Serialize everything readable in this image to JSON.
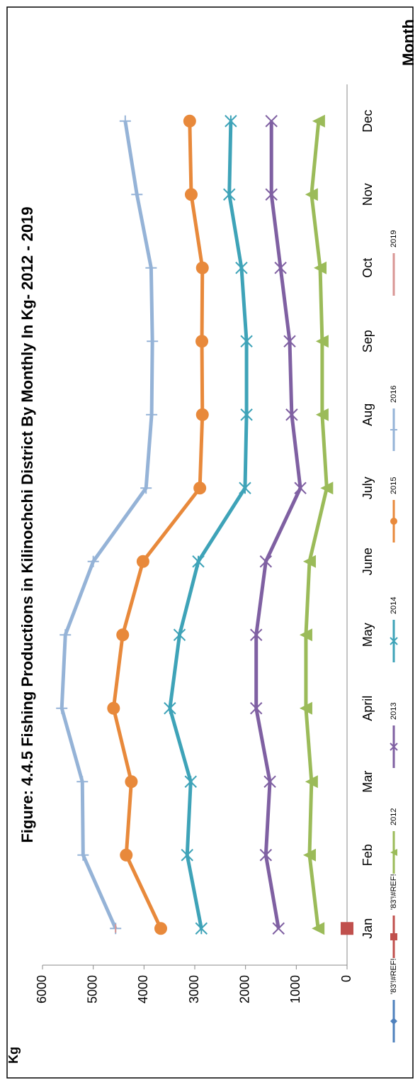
{
  "chart_data": {
    "type": "line",
    "title": "Figure: 4.4.5 Fishing Productions in Kilinochchi District By Monthly In Kg- 2012  - 2019",
    "y_label": "Kg",
    "x_label": "Month",
    "categories": [
      "Jan",
      "Feb",
      "Mar",
      "April",
      "May",
      "June",
      "July",
      "Aug",
      "Sep",
      "Oct",
      "Nov",
      "Dec"
    ],
    "ylim": [
      0,
      6000
    ],
    "yticks": [
      0,
      1000,
      2000,
      3000,
      4000,
      5000,
      6000
    ],
    "grid": false,
    "legend": "bottom",
    "series": [
      {
        "name": "'83'!#REF!",
        "color": "#4f81bd",
        "marker": "diamond",
        "values": [
          null,
          null,
          null,
          null,
          null,
          null,
          null,
          null,
          null,
          null,
          null,
          null
        ]
      },
      {
        "name": "'83'!#REF!",
        "color": "#c0504d",
        "marker": "square",
        "values": [
          0,
          null,
          null,
          null,
          null,
          null,
          null,
          null,
          null,
          null,
          null,
          null
        ]
      },
      {
        "name": "2012",
        "color": "#9bbb59",
        "marker": "triangle",
        "values": [
          570,
          740,
          700,
          810,
          810,
          740,
          400,
          490,
          490,
          530,
          700,
          560
        ]
      },
      {
        "name": "2013",
        "color": "#7f60a2",
        "marker": "x",
        "values": [
          1350,
          1600,
          1520,
          1790,
          1790,
          1600,
          920,
          1090,
          1130,
          1310,
          1490,
          1490
        ]
      },
      {
        "name": "2014",
        "color": "#3ea3b8",
        "marker": "star",
        "values": [
          2870,
          3150,
          3080,
          3490,
          3300,
          2930,
          2010,
          1980,
          1980,
          2080,
          2320,
          2290
        ]
      },
      {
        "name": "2015",
        "color": "#e8893b",
        "marker": "circle",
        "values": [
          3670,
          4350,
          4250,
          4600,
          4420,
          4020,
          2900,
          2850,
          2860,
          2850,
          3070,
          3100
        ]
      },
      {
        "name": "2016",
        "color": "#95b3d7",
        "marker": "plus",
        "values": [
          4560,
          5200,
          5215,
          5620,
          5550,
          5000,
          3960,
          3850,
          3835,
          3860,
          4140,
          4370
        ]
      },
      {
        "name": "2019",
        "color": "#d99694",
        "marker": "dash",
        "values": [
          4560,
          null,
          null,
          null,
          null,
          null,
          null,
          null,
          null,
          null,
          null,
          null
        ]
      }
    ]
  }
}
